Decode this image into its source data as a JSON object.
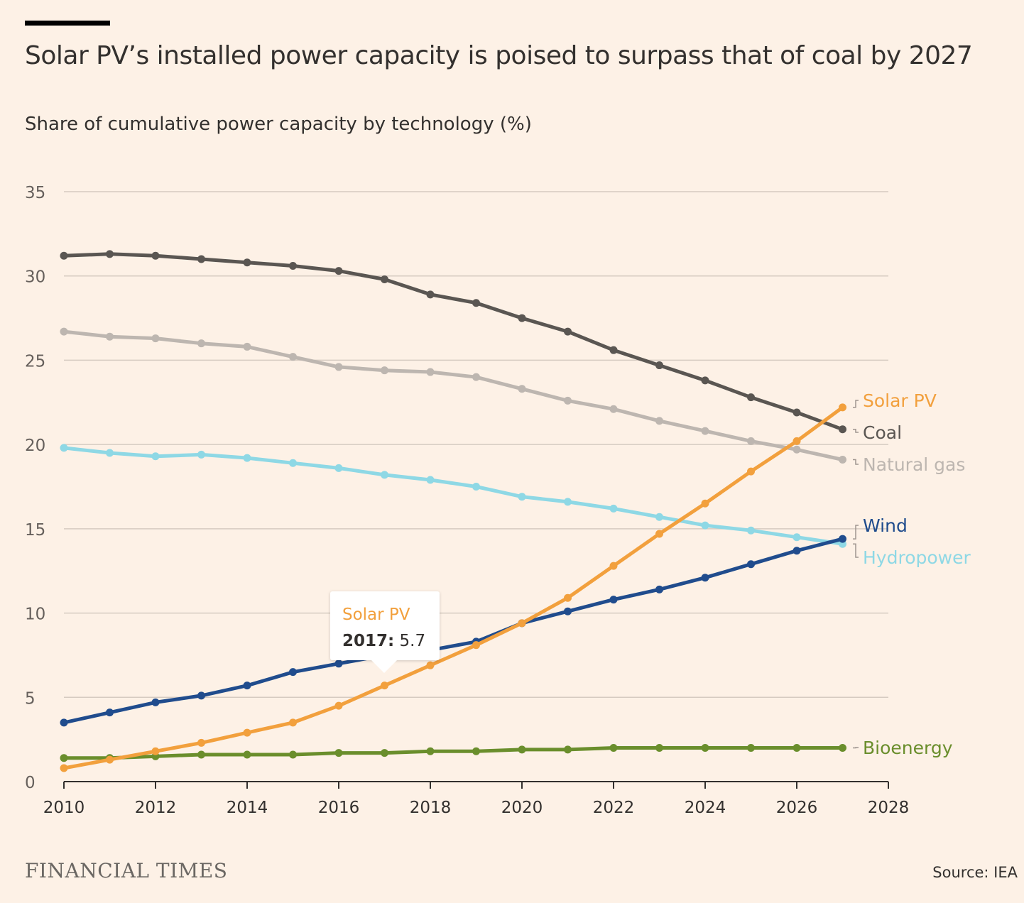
{
  "title": "Solar PV’s installed power capacity is poised to surpass that of coal by 2027",
  "subtitle": "Share of cumulative power capacity by technology (%)",
  "brand": "FINANCIAL TIMES",
  "source": "Source: IEA",
  "tooltip": {
    "series": "Solar PV",
    "year": "2017:",
    "value": "5.7"
  },
  "chart_data": {
    "type": "line",
    "title": "Solar PV’s installed power capacity is poised to surpass that of coal by 2027",
    "subtitle": "Share of cumulative power capacity by technology (%)",
    "xlabel": "",
    "ylabel": "",
    "xlim": [
      2010,
      2028
    ],
    "ylim": [
      0,
      35
    ],
    "x_ticks": [
      2010,
      2012,
      2014,
      2016,
      2018,
      2020,
      2022,
      2024,
      2026,
      2028
    ],
    "y_ticks": [
      0,
      5,
      10,
      15,
      20,
      25,
      30,
      35
    ],
    "grid": "horizontal",
    "legend": "direct labels at right end of lines",
    "x": [
      2010,
      2011,
      2012,
      2013,
      2014,
      2015,
      2016,
      2017,
      2018,
      2019,
      2020,
      2021,
      2022,
      2023,
      2024,
      2025,
      2026,
      2027
    ],
    "series": [
      {
        "name": "Coal",
        "color": "#5a5652",
        "values": [
          31.2,
          31.3,
          31.2,
          31.0,
          30.8,
          30.6,
          30.3,
          29.8,
          28.9,
          28.4,
          27.5,
          26.7,
          25.6,
          24.7,
          23.8,
          22.8,
          21.9,
          20.9
        ]
      },
      {
        "name": "Natural gas",
        "color": "#bdb6b0",
        "values": [
          26.7,
          26.4,
          26.3,
          26.0,
          25.8,
          25.2,
          24.6,
          24.4,
          24.3,
          24.0,
          23.3,
          22.6,
          22.1,
          21.4,
          20.8,
          20.2,
          19.7,
          19.1
        ]
      },
      {
        "name": "Hydropower",
        "color": "#8ed8e5",
        "values": [
          19.8,
          19.5,
          19.3,
          19.4,
          19.2,
          18.9,
          18.6,
          18.2,
          17.9,
          17.5,
          16.9,
          16.6,
          16.2,
          15.7,
          15.2,
          14.9,
          14.5,
          14.1
        ]
      },
      {
        "name": "Wind",
        "color": "#204c8d",
        "values": [
          3.5,
          4.1,
          4.7,
          5.1,
          5.7,
          6.5,
          7.0,
          7.5,
          7.8,
          8.3,
          9.4,
          10.1,
          10.8,
          11.4,
          12.1,
          12.9,
          13.7,
          14.4
        ]
      },
      {
        "name": "Bioenergy",
        "color": "#6a8e2c",
        "values": [
          1.4,
          1.4,
          1.5,
          1.6,
          1.6,
          1.6,
          1.7,
          1.7,
          1.8,
          1.8,
          1.9,
          1.9,
          2.0,
          2.0,
          2.0,
          2.0,
          2.0,
          2.0
        ]
      },
      {
        "name": "Solar PV",
        "color": "#f2a03d",
        "values": [
          0.8,
          1.3,
          1.8,
          2.3,
          2.9,
          3.5,
          4.5,
          5.7,
          6.9,
          8.1,
          9.4,
          10.9,
          12.8,
          14.7,
          16.5,
          18.4,
          20.2,
          22.2
        ]
      }
    ]
  }
}
